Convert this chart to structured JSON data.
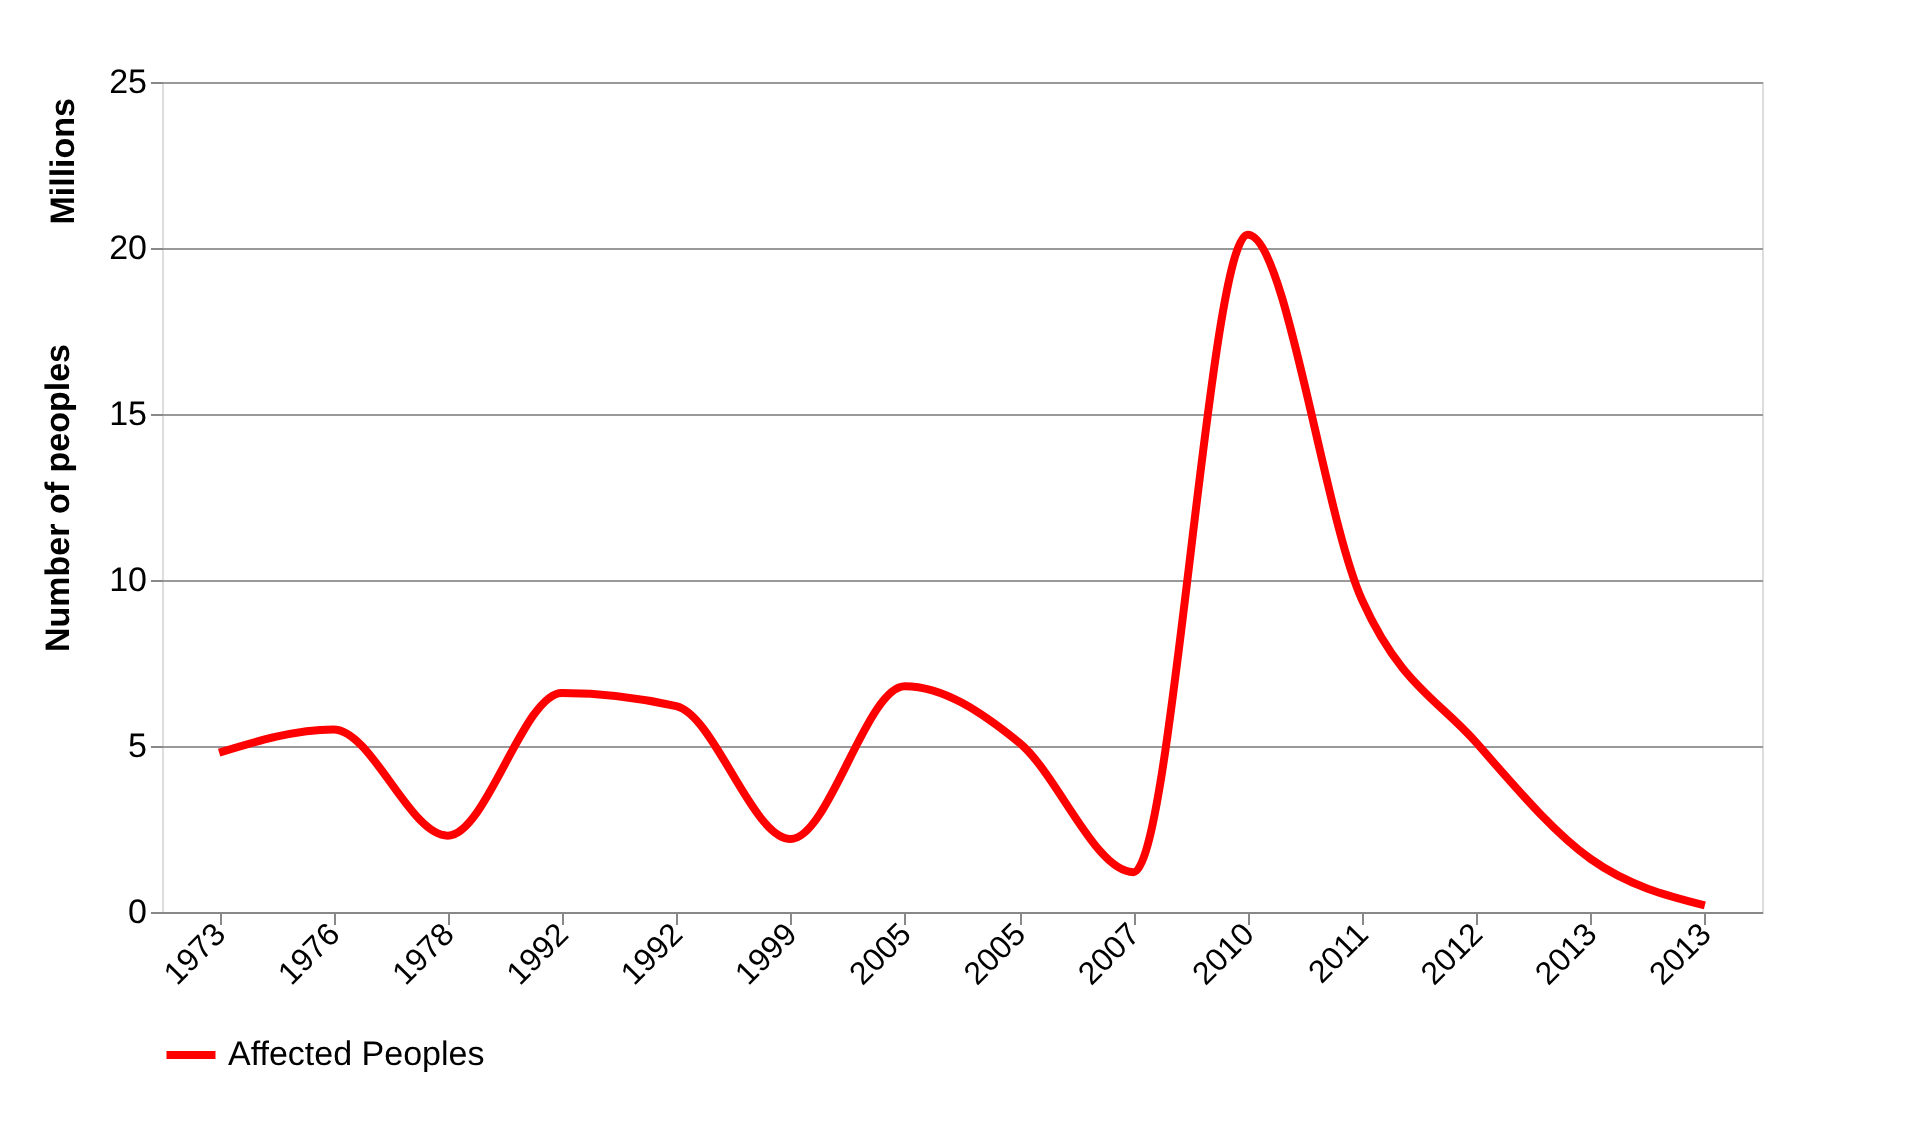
{
  "chart_data": {
    "type": "line",
    "ylabel": "Number of peoples",
    "annotations": [
      "Millions"
    ],
    "categories": [
      "1973",
      "1976",
      "1978",
      "1992",
      "1992",
      "1999",
      "2005",
      "2005",
      "2007",
      "2010",
      "2011",
      "2012",
      "2013",
      "2013"
    ],
    "series": [
      {
        "name": "Affected Peoples",
        "color": "#ff0000",
        "values": [
          4.8,
          5.5,
          2.3,
          6.6,
          6.2,
          2.2,
          6.8,
          5.1,
          1.2,
          20.4,
          9.4,
          5.1,
          1.6,
          0.2
        ]
      }
    ],
    "ylim": [
      0,
      25
    ],
    "yticks": [
      0,
      5,
      10,
      15,
      20,
      25
    ],
    "grid": "y",
    "legend": "bottom",
    "marker": "none",
    "line_style": "solid"
  }
}
